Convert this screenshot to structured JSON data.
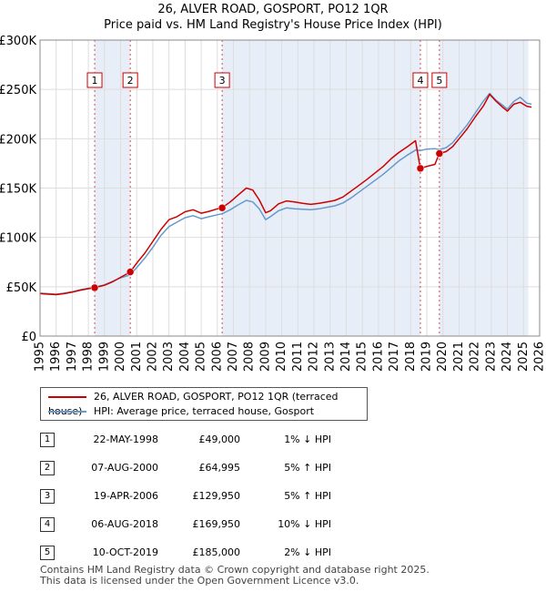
{
  "title": "26, ALVER ROAD, GOSPORT, PO12 1QR",
  "subtitle": "Price paid vs. HM Land Registry's House Price Index (HPI)",
  "chart_data": {
    "type": "line",
    "title": "26, ALVER ROAD, GOSPORT, PO12 1QR",
    "subtitle": "Price paid vs. HM Land Registry's House Price Index (HPI)",
    "xlabel": "",
    "ylabel": "",
    "xlim": [
      1995,
      2026
    ],
    "ylim": [
      0,
      300000
    ],
    "grid": true,
    "x_ticks": [
      1995,
      1996,
      1997,
      1998,
      1999,
      2000,
      2001,
      2002,
      2003,
      2004,
      2005,
      2006,
      2007,
      2008,
      2009,
      2010,
      2011,
      2012,
      2013,
      2014,
      2015,
      2016,
      2017,
      2018,
      2019,
      2020,
      2021,
      2022,
      2023,
      2024,
      2025,
      2026
    ],
    "y_ticks": [
      {
        "value": 0,
        "label": "£0"
      },
      {
        "value": 50000,
        "label": "£50K"
      },
      {
        "value": 100000,
        "label": "£100K"
      },
      {
        "value": 150000,
        "label": "£150K"
      },
      {
        "value": 200000,
        "label": "£200K"
      },
      {
        "value": 250000,
        "label": "£250K"
      },
      {
        "value": 300000,
        "label": "£300K"
      }
    ],
    "shaded_bands": [
      [
        1998.39,
        2000.6
      ],
      [
        2006.3,
        2018.6
      ],
      [
        2019.78,
        2025.3
      ]
    ],
    "series": [
      {
        "name": "26, ALVER ROAD, GOSPORT, PO12 1QR (terraced house)",
        "color": "#cc0000",
        "x": [
          1995.0,
          1995.5,
          1996.0,
          1996.5,
          1997.0,
          1997.5,
          1998.0,
          1998.39,
          1999.0,
          1999.5,
          2000.0,
          2000.6,
          2001.0,
          2001.5,
          2002.0,
          2002.5,
          2003.0,
          2003.5,
          2004.0,
          2004.5,
          2005.0,
          2005.5,
          2006.0,
          2006.3,
          2006.8,
          2007.3,
          2007.8,
          2008.2,
          2008.6,
          2009.0,
          2009.3,
          2009.8,
          2010.3,
          2010.8,
          2011.3,
          2011.8,
          2012.3,
          2012.8,
          2013.3,
          2013.8,
          2014.3,
          2014.8,
          2015.3,
          2015.8,
          2016.3,
          2016.8,
          2017.3,
          2017.8,
          2018.3,
          2018.6,
          2019.0,
          2019.5,
          2019.78,
          2020.2,
          2020.6,
          2021.0,
          2021.5,
          2022.0,
          2022.5,
          2022.9,
          2023.3,
          2023.7,
          2024.0,
          2024.4,
          2024.8,
          2025.2,
          2025.5
        ],
        "values": [
          43000,
          42500,
          42000,
          43000,
          44500,
          46500,
          48000,
          49000,
          51500,
          55000,
          59500,
          64995,
          74000,
          84000,
          96000,
          108000,
          118000,
          121000,
          126000,
          128000,
          124500,
          126500,
          129000,
          129950,
          136000,
          143000,
          150000,
          148000,
          138000,
          125000,
          127000,
          134000,
          137000,
          136000,
          134500,
          133500,
          134500,
          136000,
          137500,
          141000,
          147000,
          153000,
          159000,
          165500,
          172000,
          180000,
          186500,
          192000,
          198000,
          169950,
          172000,
          174000,
          185000,
          187000,
          192000,
          200000,
          210000,
          222000,
          233000,
          245000,
          238000,
          232000,
          228000,
          235000,
          237000,
          233000,
          232000
        ]
      },
      {
        "name": "HPI: Average price, terraced house, Gosport",
        "color": "#6699cc",
        "x": [
          1995.0,
          1995.5,
          1996.0,
          1996.5,
          1997.0,
          1997.5,
          1998.0,
          1998.39,
          1999.0,
          1999.5,
          2000.0,
          2000.6,
          2001.0,
          2001.5,
          2002.0,
          2002.5,
          2003.0,
          2003.5,
          2004.0,
          2004.5,
          2005.0,
          2005.5,
          2006.0,
          2006.3,
          2006.8,
          2007.3,
          2007.8,
          2008.2,
          2008.6,
          2009.0,
          2009.3,
          2009.8,
          2010.3,
          2010.8,
          2011.3,
          2011.8,
          2012.3,
          2012.8,
          2013.3,
          2013.8,
          2014.3,
          2014.8,
          2015.3,
          2015.8,
          2016.3,
          2016.8,
          2017.3,
          2017.8,
          2018.3,
          2018.6,
          2019.0,
          2019.5,
          2019.78,
          2020.2,
          2020.6,
          2021.0,
          2021.5,
          2022.0,
          2022.5,
          2022.9,
          2023.3,
          2023.7,
          2024.0,
          2024.4,
          2024.8,
          2025.2,
          2025.5
        ],
        "values": [
          43500,
          43000,
          42500,
          43500,
          45000,
          47000,
          48500,
          49500,
          52000,
          55500,
          59000,
          62000,
          69500,
          79000,
          90000,
          102000,
          111000,
          115500,
          120000,
          122000,
          119000,
          121000,
          123000,
          124000,
          128000,
          133000,
          137500,
          136000,
          129000,
          118000,
          121000,
          127000,
          130000,
          129000,
          128500,
          128000,
          129000,
          130500,
          132000,
          135000,
          140000,
          146000,
          152000,
          158000,
          164000,
          171000,
          178000,
          183500,
          188500,
          188000,
          189500,
          190000,
          189000,
          191000,
          196000,
          204000,
          214000,
          226000,
          238000,
          246000,
          239000,
          234000,
          230000,
          238000,
          242000,
          236000,
          235000
        ]
      }
    ],
    "annotations": [
      {
        "label": "1",
        "x": 1998.39,
        "y": 49000
      },
      {
        "label": "2",
        "x": 2000.6,
        "y": 64995
      },
      {
        "label": "3",
        "x": 2006.3,
        "y": 129950
      },
      {
        "label": "4",
        "x": 2018.6,
        "y": 169950
      },
      {
        "label": "5",
        "x": 2019.78,
        "y": 185000
      }
    ]
  },
  "legend": {
    "property": "26, ALVER ROAD, GOSPORT, PO12 1QR (terraced house)",
    "hpi": "HPI: Average price, terraced house, Gosport"
  },
  "transactions": [
    {
      "num": "1",
      "date": "22-MAY-1998",
      "price": "£49,000",
      "hpi": "1% ↓ HPI"
    },
    {
      "num": "2",
      "date": "07-AUG-2000",
      "price": "£64,995",
      "hpi": "5% ↑ HPI"
    },
    {
      "num": "3",
      "date": "19-APR-2006",
      "price": "£129,950",
      "hpi": "5% ↑ HPI"
    },
    {
      "num": "4",
      "date": "06-AUG-2018",
      "price": "£169,950",
      "hpi": "10% ↓ HPI"
    },
    {
      "num": "5",
      "date": "10-OCT-2019",
      "price": "£185,000",
      "hpi": "2% ↓ HPI"
    }
  ],
  "footer": {
    "line1": "Contains HM Land Registry data © Crown copyright and database right 2025.",
    "line2": "This data is licensed under the Open Government Licence v3.0."
  }
}
